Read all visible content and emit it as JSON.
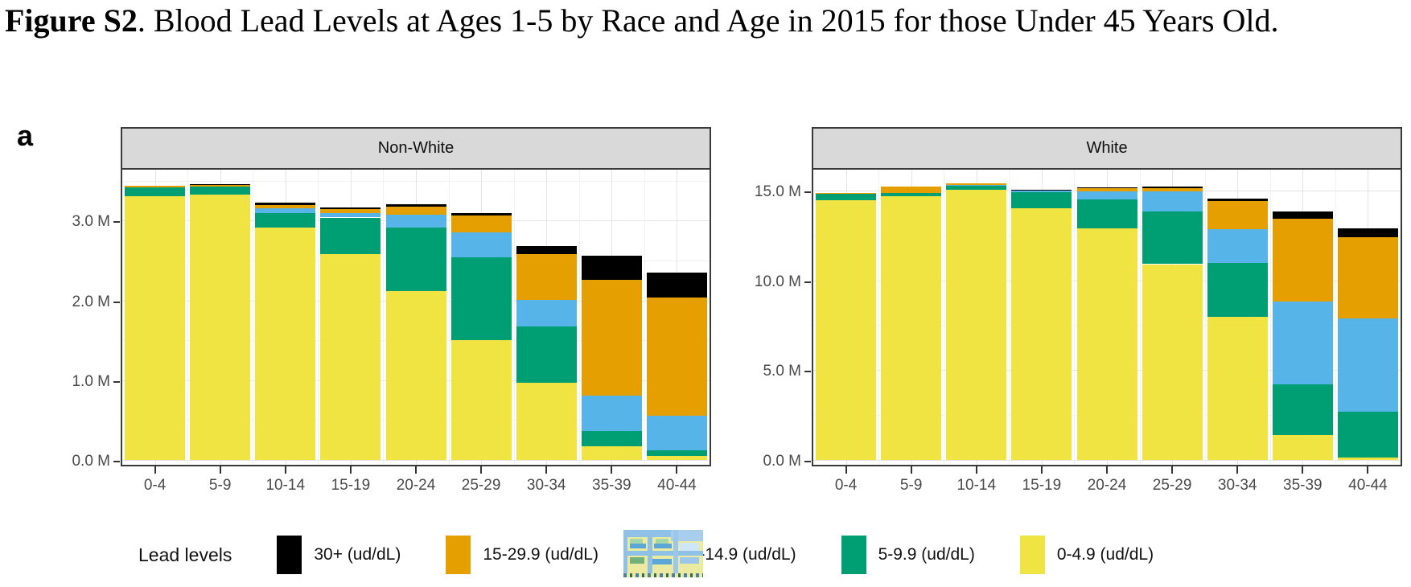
{
  "figure": {
    "title_bold": "Figure S2",
    "title_rest": ". Blood Lead Levels at Ages 1-5 by Race and Age in 2015 for those Under 45 Years Old.",
    "panel_label": "a"
  },
  "colors": {
    "yellow": "#F0E442",
    "green": "#009E73",
    "blue": "#56B4E9",
    "orange": "#E69F00",
    "black": "#000000",
    "strip_bg": "#d9d9d9",
    "axis_text": "#4a4a4a"
  },
  "legend": {
    "title": "Lead levels",
    "items": [
      {
        "label": "30+ (ud/dL)",
        "color": "#000000",
        "obscured_by_artifact": false
      },
      {
        "label": "15-29.9 (ud/dL)",
        "color": "#E69F00",
        "obscured_by_artifact": false
      },
      {
        "label": "10-14.9 (ud/dL)",
        "color": "#56B4E9",
        "obscured_by_artifact": true
      },
      {
        "label": "5-9.9 (ud/dL)",
        "color": "#009E73",
        "obscured_by_artifact": false
      },
      {
        "label": "0-4.9 (ud/dL)",
        "color": "#F0E442",
        "obscured_by_artifact": false
      }
    ]
  },
  "chart_data": [
    {
      "type": "bar",
      "stacked": true,
      "facet": "Non-White",
      "categories": [
        "0-4",
        "5-9",
        "10-14",
        "15-19",
        "20-24",
        "25-29",
        "30-34",
        "35-39",
        "40-44"
      ],
      "units": "millions of people",
      "ylim": [
        0,
        3.64
      ],
      "yticks": [
        {
          "v": 0,
          "label": "0.0 M"
        },
        {
          "v": 1,
          "label": "1.0 M"
        },
        {
          "v": 2,
          "label": "2.0 M"
        },
        {
          "v": 3,
          "label": "3.0 M"
        }
      ],
      "grid": true,
      "series": [
        {
          "name": "0-4.9 (ud/dL)",
          "color": "#F0E442",
          "values": [
            3.31,
            3.33,
            2.91,
            2.58,
            2.12,
            1.5,
            0.97,
            0.17,
            0.05
          ]
        },
        {
          "name": "5-9.9 (ud/dL)",
          "color": "#009E73",
          "values": [
            0.11,
            0.1,
            0.19,
            0.46,
            0.79,
            1.04,
            0.7,
            0.19,
            0.07
          ]
        },
        {
          "name": "10-14.9 (ud/dL)",
          "color": "#56B4E9",
          "values": [
            0.0,
            0.0,
            0.06,
            0.06,
            0.17,
            0.31,
            0.34,
            0.45,
            0.43
          ]
        },
        {
          "name": "15-29.9 (ud/dL)",
          "color": "#E69F00",
          "values": [
            0.02,
            0.02,
            0.04,
            0.05,
            0.1,
            0.22,
            0.57,
            1.45,
            1.49
          ]
        },
        {
          "name": "30+ (ud/dL)",
          "color": "#000000",
          "values": [
            0.0,
            0.01,
            0.03,
            0.02,
            0.03,
            0.03,
            0.1,
            0.3,
            0.31
          ]
        }
      ]
    },
    {
      "type": "bar",
      "stacked": true,
      "facet": "White",
      "categories": [
        "0-4",
        "5-9",
        "10-14",
        "15-19",
        "20-24",
        "25-29",
        "30-34",
        "35-39",
        "40-44"
      ],
      "units": "millions of people",
      "ylim": [
        0,
        16.16
      ],
      "yticks": [
        {
          "v": 0,
          "label": "0.0 M"
        },
        {
          "v": 5,
          "label": "5.0 M"
        },
        {
          "v": 10,
          "label": "10.0 M"
        },
        {
          "v": 15,
          "label": "15.0 M"
        }
      ],
      "grid": true,
      "series": [
        {
          "name": "0-4.9 (ud/dL)",
          "color": "#F0E442",
          "values": [
            14.47,
            14.69,
            15.03,
            14.02,
            12.9,
            10.9,
            7.95,
            1.38,
            0.12
          ]
        },
        {
          "name": "5-9.9 (ud/dL)",
          "color": "#009E73",
          "values": [
            0.36,
            0.18,
            0.25,
            0.88,
            1.62,
            2.92,
            3.0,
            2.81,
            2.58
          ]
        },
        {
          "name": "10-14.9 (ud/dL)",
          "color": "#56B4E9",
          "values": [
            0.01,
            0.01,
            0.02,
            0.12,
            0.42,
            1.12,
            1.9,
            4.64,
            5.2
          ]
        },
        {
          "name": "15-29.9 (ud/dL)",
          "color": "#E69F00",
          "values": [
            0.02,
            0.34,
            0.08,
            0.02,
            0.2,
            0.18,
            1.55,
            4.6,
            4.52
          ]
        },
        {
          "name": "30+ (ud/dL)",
          "color": "#000000",
          "values": [
            0.01,
            0.01,
            0.01,
            0.02,
            0.03,
            0.08,
            0.13,
            0.4,
            0.45
          ]
        }
      ]
    }
  ]
}
